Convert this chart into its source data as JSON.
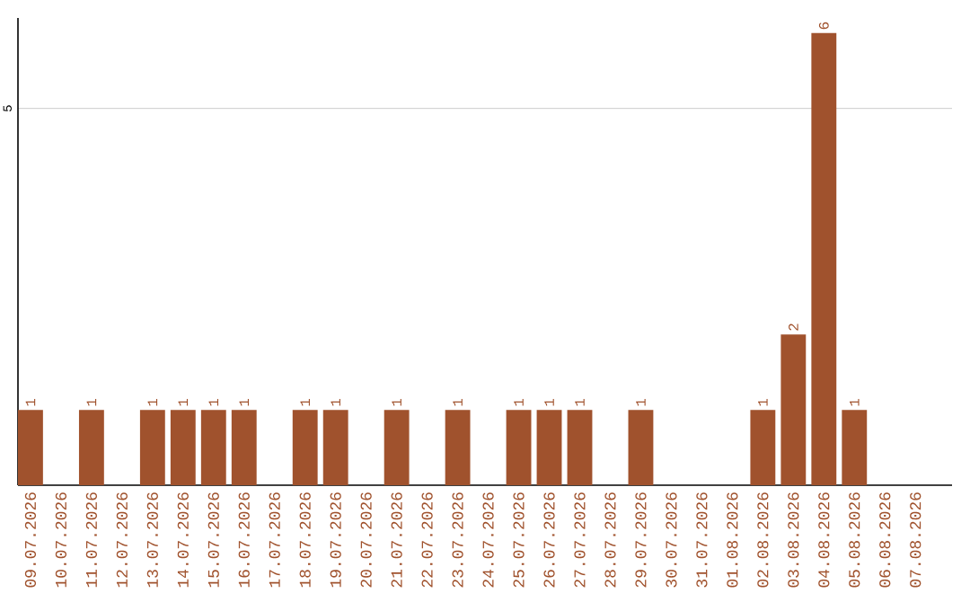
{
  "chart_data": {
    "type": "bar",
    "categories": [
      "09.07.2026",
      "10.07.2026",
      "11.07.2026",
      "12.07.2026",
      "13.07.2026",
      "14.07.2026",
      "15.07.2026",
      "16.07.2026",
      "17.07.2026",
      "18.07.2026",
      "19.07.2026",
      "20.07.2026",
      "21.07.2026",
      "22.07.2026",
      "23.07.2026",
      "24.07.2026",
      "25.07.2026",
      "26.07.2026",
      "27.07.2026",
      "28.07.2026",
      "29.07.2026",
      "30.07.2026",
      "31.07.2026",
      "01.08.2026",
      "02.08.2026",
      "03.08.2026",
      "04.08.2026",
      "05.08.2026",
      "06.08.2026",
      "07.08.2026"
    ],
    "values": [
      1,
      0,
      1,
      0,
      1,
      1,
      1,
      1,
      0,
      1,
      1,
      0,
      1,
      0,
      1,
      0,
      1,
      1,
      1,
      0,
      1,
      0,
      0,
      0,
      1,
      2,
      6,
      1,
      0,
      0
    ],
    "value_labels": [
      "1",
      null,
      "1",
      null,
      "1",
      "1",
      "1",
      "1",
      null,
      "1",
      "1",
      null,
      "1",
      null,
      "1",
      null,
      "1",
      "1",
      "1",
      null,
      "1",
      null,
      null,
      null,
      "1",
      "2",
      "6",
      "1",
      null,
      null
    ],
    "color": "#a0522d",
    "ylim": [
      0,
      6.2
    ],
    "yticks": [
      5
    ],
    "grid": "y"
  }
}
